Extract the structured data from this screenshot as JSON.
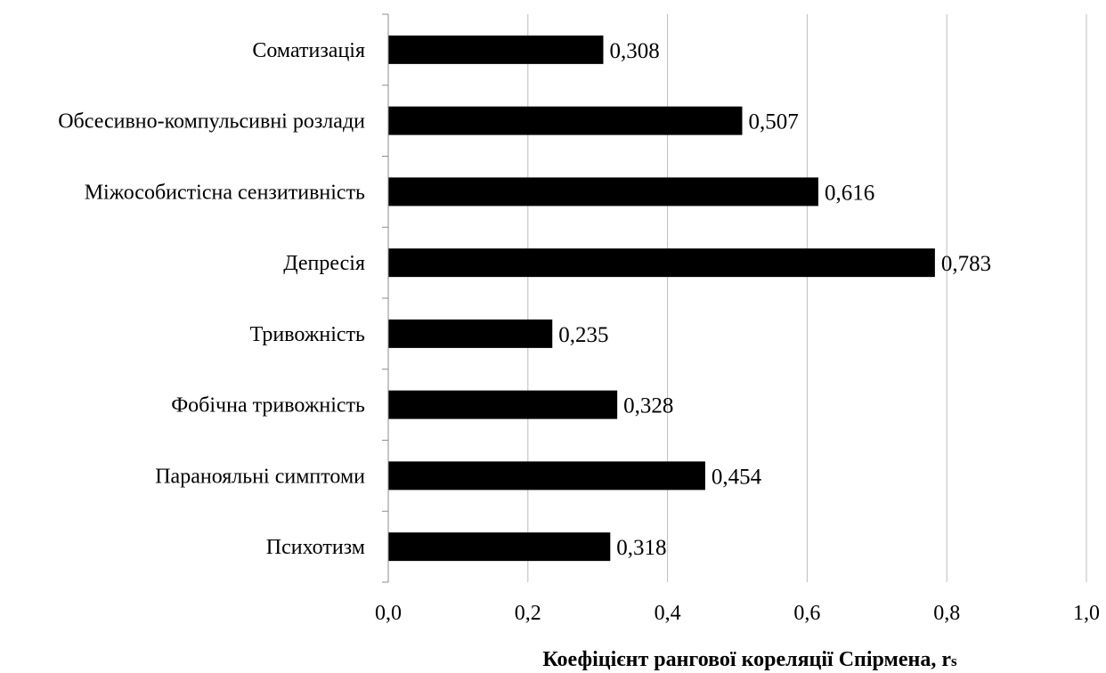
{
  "chart_data": {
    "type": "bar",
    "orientation": "horizontal",
    "categories": [
      "Соматизація",
      "Обсесивно-компульсивні розлади",
      "Міжособистісна сензитивність",
      "Депресія",
      "Тривожність",
      "Фобічна тривожність",
      "Паранояльні симптоми",
      "Психотизм"
    ],
    "values": [
      0.308,
      0.507,
      0.616,
      0.783,
      0.235,
      0.328,
      0.454,
      0.318
    ],
    "value_labels": [
      "0,308",
      "0,507",
      "0,616",
      "0,783",
      "0,235",
      "0,328",
      "0,454",
      "0,318"
    ],
    "xlabel": "Коефіцієнт рангової кореляції Спірмена, r",
    "xlabel_subscript": "s",
    "xlim": [
      0,
      1.0
    ],
    "x_ticks": [
      "0,0",
      "0,2",
      "0,4",
      "0,6",
      "0,8",
      "1,0"
    ],
    "grid": "vertical",
    "legend": "none",
    "bar_color": "#000000",
    "grid_color": "#bdbdbd"
  }
}
